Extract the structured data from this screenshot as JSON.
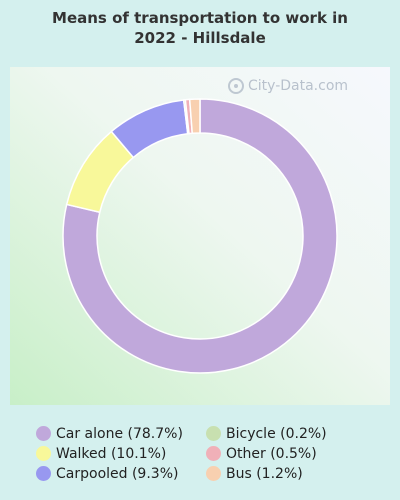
{
  "title_line1": "Means of transportation to work in",
  "title_line2": "2022 - Hillsdale",
  "watermark": "City-Data.com",
  "chart_data": {
    "type": "pie",
    "style": "donut",
    "title": "Means of transportation to work in 2022 - Hillsdale",
    "slices": [
      {
        "label": "Car alone",
        "value": 78.7,
        "legend": "Car alone (78.7%)",
        "color": "#c0a8db"
      },
      {
        "label": "Walked",
        "value": 10.1,
        "legend": "Walked (10.1%)",
        "color": "#f8f89a"
      },
      {
        "label": "Carpooled",
        "value": 9.3,
        "legend": "Carpooled (9.3%)",
        "color": "#9898f0"
      },
      {
        "label": "Bicycle",
        "value": 0.2,
        "legend": "Bicycle (0.2%)",
        "color": "#c8e0b0"
      },
      {
        "label": "Other",
        "value": 0.5,
        "legend": "Other (0.5%)",
        "color": "#f0b0b8"
      },
      {
        "label": "Bus",
        "value": 1.2,
        "legend": "Bus (1.2%)",
        "color": "#f8d0b0"
      }
    ],
    "legend_placement": "bottom"
  }
}
